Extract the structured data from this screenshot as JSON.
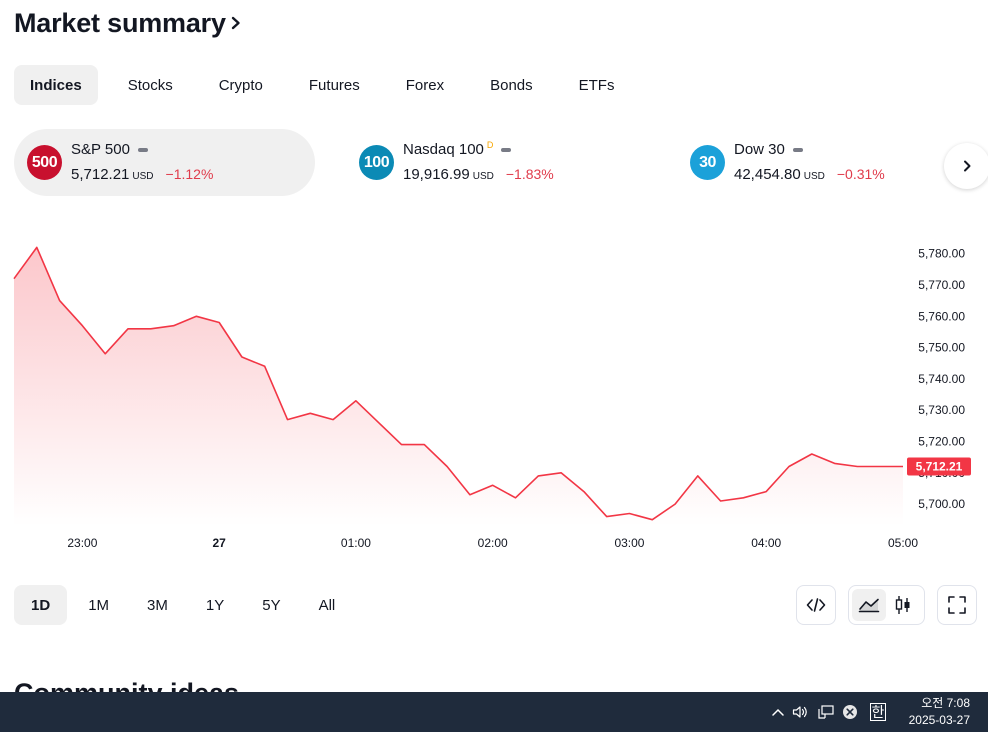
{
  "header": {
    "title": "Market summary"
  },
  "tabs": [
    "Indices",
    "Stocks",
    "Crypto",
    "Futures",
    "Forex",
    "Bonds",
    "ETFs"
  ],
  "indices": [
    {
      "badge": "500",
      "badge_color": "#c8102e",
      "name": "S&P 500",
      "delay_mark": "",
      "price": "5,712.21",
      "currency": "USD",
      "change": "−1.12%"
    },
    {
      "badge": "100",
      "badge_color": "#0b8ab5",
      "name": "Nasdaq 100",
      "delay_mark": "D",
      "price": "19,916.99",
      "currency": "USD",
      "change": "−1.83%"
    },
    {
      "badge": "30",
      "badge_color": "#1ba1d9",
      "name": "Dow 30",
      "delay_mark": "",
      "price": "42,454.80",
      "currency": "USD",
      "change": "−0.31%"
    }
  ],
  "chart_data": {
    "type": "area",
    "series": [
      {
        "color": "#f23645",
        "x": [
          "22:30",
          "22:40",
          "22:50",
          "23:00",
          "23:10",
          "23:20",
          "23:30",
          "23:40",
          "23:50",
          "00:00",
          "00:10",
          "00:20",
          "00:30",
          "00:40",
          "00:50",
          "01:00",
          "01:10",
          "01:20",
          "01:30",
          "01:40",
          "01:50",
          "02:00",
          "02:10",
          "02:20",
          "02:30",
          "02:40",
          "02:50",
          "03:00",
          "03:10",
          "03:20",
          "03:30",
          "03:40",
          "03:50",
          "04:00",
          "04:10",
          "04:20",
          "04:30",
          "04:40",
          "04:50",
          "05:00"
        ],
        "values": [
          5772,
          5782,
          5765,
          5757,
          5748,
          5756,
          5756,
          5757,
          5760,
          5758,
          5747,
          5744,
          5727,
          5729,
          5727,
          5733,
          5726,
          5719,
          5719,
          5712,
          5703,
          5706,
          5702,
          5709,
          5710,
          5704,
          5696,
          5697,
          5695,
          5700,
          5709,
          5701,
          5702,
          5704,
          5712,
          5716,
          5713,
          5712,
          5712,
          5712
        ]
      }
    ],
    "x_ticks": [
      "23:00",
      "27",
      "01:00",
      "02:00",
      "03:00",
      "04:00",
      "05:00"
    ],
    "y_ticks": [
      "5,780.00",
      "5,770.00",
      "5,760.00",
      "5,750.00",
      "5,740.00",
      "5,730.00",
      "5,720.00",
      "5,710.00",
      "5,700.00"
    ],
    "ylim": [
      5693,
      5785
    ],
    "last_value_label": "5,712.21",
    "grid": false
  },
  "ranges": [
    "1D",
    "1M",
    "3M",
    "1Y",
    "5Y",
    "All"
  ],
  "toolbar": {
    "embed_icon": "code-icon",
    "line_icon": "area-chart-icon",
    "candle_icon": "candlestick-icon",
    "fullscreen_icon": "fullscreen-icon"
  },
  "next_section": {
    "title": "Community ideas"
  },
  "taskbar": {
    "time": "오전 7:08",
    "date": "2025-03-27",
    "ime": "한"
  }
}
